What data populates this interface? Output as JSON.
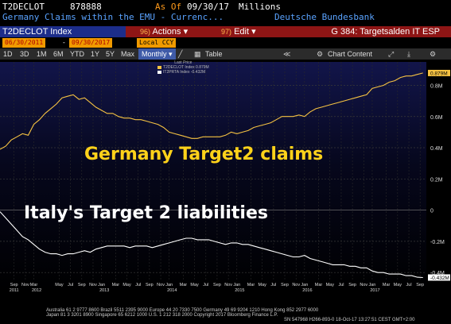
{
  "header": {
    "ticker": "T2DECLOT",
    "code": "878888",
    "as_of_label": "As Of",
    "as_of_date": "09/30/17",
    "units": "Millions",
    "description": "Germany Claims within the EMU - Currenc...",
    "source": "Deutsche Bundesbank"
  },
  "toolbar": {
    "index_name": "T2DECLOT Index",
    "actions_num": "96)",
    "actions_label": "Actions ▾",
    "edit_num": "97)",
    "edit_label": "Edit ▾",
    "page_title": "G 384: Targetsalden IT ESP"
  },
  "date_row": {
    "start_date": "06/30/2011",
    "end_date": "09/30/2017",
    "dash": "-",
    "currency": "Local CCY"
  },
  "periods": [
    "1D",
    "3D",
    "1M",
    "6M",
    "YTD",
    "1Y",
    "5Y",
    "Max"
  ],
  "period_selector": "Monthly ▾",
  "table_label": "Table",
  "chart_content_label": "Chart Content",
  "legend": {
    "title": "Last Price",
    "series1": "T2DECLOT Index   0.879M",
    "series2": "IT2PRTA Index   -0.432M",
    "series1_color": "#f5c242",
    "series2_color": "#ffffff"
  },
  "annotations": {
    "germany": "Germany Target2 claims",
    "italy": "Italy's Target 2 liabilities"
  },
  "footer": {
    "line1": "Australia 61 2 9777 8600 Brazil 5511 2395 9000 Europe 44 20 7330 7500 Germany 49 69 9204 1210 Hong Kong 852 2977 6000",
    "line2": "Japan 81 3 3201 8900        Singapore 65 6212 1000        U.S. 1 212 318 2000              Copyright 2017 Bloomberg Finance L.P.",
    "line3": "SN 547968 H266-893-0 18-Oct-17 13:27:51 CEST GMT+2:00"
  },
  "chart_data": {
    "type": "line",
    "ylim": [
      -0.45,
      0.95
    ],
    "y_ticks": [
      0.8,
      0.6,
      0.4,
      0.2,
      0,
      -0.2,
      -0.4
    ],
    "y_tick_labels": [
      "0.8M",
      "0.6M",
      "0.4M",
      "0.2M",
      "0",
      "-0.2M",
      "-0.4M"
    ],
    "month_ticks": [
      {
        "t": 2011.708,
        "label": "Sep"
      },
      {
        "t": 2011.875,
        "label": "Nov"
      },
      {
        "t": 2012.0,
        "label": "Mar"
      },
      {
        "t": 2012.375,
        "label": "May"
      },
      {
        "t": 2012.542,
        "label": "Jul"
      },
      {
        "t": 2012.708,
        "label": "Sep"
      },
      {
        "t": 2012.875,
        "label": "Nov"
      },
      {
        "t": 2013.0,
        "label": "Jan"
      },
      {
        "t": 2013.208,
        "label": "Mar"
      },
      {
        "t": 2013.375,
        "label": "May"
      },
      {
        "t": 2013.542,
        "label": "Jul"
      },
      {
        "t": 2013.708,
        "label": "Sep"
      },
      {
        "t": 2013.875,
        "label": "Nov"
      },
      {
        "t": 2014.0,
        "label": "Jan"
      },
      {
        "t": 2014.208,
        "label": "Mar"
      },
      {
        "t": 2014.375,
        "label": "May"
      },
      {
        "t": 2014.542,
        "label": "Jul"
      },
      {
        "t": 2014.708,
        "label": "Sep"
      },
      {
        "t": 2014.875,
        "label": "Nov"
      },
      {
        "t": 2015.0,
        "label": "Jan"
      },
      {
        "t": 2015.208,
        "label": "Mar"
      },
      {
        "t": 2015.375,
        "label": "May"
      },
      {
        "t": 2015.542,
        "label": "Jul"
      },
      {
        "t": 2015.708,
        "label": "Sep"
      },
      {
        "t": 2015.875,
        "label": "Nov"
      },
      {
        "t": 2016.0,
        "label": "Jan"
      },
      {
        "t": 2016.208,
        "label": "Mar"
      },
      {
        "t": 2016.375,
        "label": "May"
      },
      {
        "t": 2016.542,
        "label": "Jul"
      },
      {
        "t": 2016.708,
        "label": "Sep"
      },
      {
        "t": 2016.875,
        "label": "Nov"
      },
      {
        "t": 2017.0,
        "label": "Jan"
      },
      {
        "t": 2017.208,
        "label": "Mar"
      },
      {
        "t": 2017.375,
        "label": "May"
      },
      {
        "t": 2017.542,
        "label": "Jul"
      },
      {
        "t": 2017.708,
        "label": "Sep"
      }
    ],
    "year_ticks": [
      {
        "t": 2011.708,
        "label": "2011"
      },
      {
        "t": 2012.042,
        "label": "2012"
      },
      {
        "t": 2013.042,
        "label": "2013"
      },
      {
        "t": 2014.042,
        "label": "2014"
      },
      {
        "t": 2015.042,
        "label": "2015"
      },
      {
        "t": 2016.042,
        "label": "2016"
      },
      {
        "t": 2017.042,
        "label": "2017"
      }
    ],
    "series": [
      {
        "name": "T2DECLOT Index",
        "color": "#f5c242",
        "last_value_label": "0.879M",
        "points": [
          [
            2011.5,
            0.39
          ],
          [
            2011.583,
            0.41
          ],
          [
            2011.667,
            0.45
          ],
          [
            2011.75,
            0.47
          ],
          [
            2011.833,
            0.49
          ],
          [
            2011.917,
            0.48
          ],
          [
            2012.0,
            0.55
          ],
          [
            2012.083,
            0.58
          ],
          [
            2012.167,
            0.62
          ],
          [
            2012.25,
            0.65
          ],
          [
            2012.333,
            0.68
          ],
          [
            2012.417,
            0.72
          ],
          [
            2012.5,
            0.73
          ],
          [
            2012.583,
            0.74
          ],
          [
            2012.667,
            0.71
          ],
          [
            2012.75,
            0.72
          ],
          [
            2012.833,
            0.69
          ],
          [
            2012.917,
            0.66
          ],
          [
            2013.0,
            0.64
          ],
          [
            2013.083,
            0.62
          ],
          [
            2013.167,
            0.62
          ],
          [
            2013.25,
            0.6
          ],
          [
            2013.333,
            0.59
          ],
          [
            2013.417,
            0.59
          ],
          [
            2013.5,
            0.58
          ],
          [
            2013.583,
            0.58
          ],
          [
            2013.667,
            0.57
          ],
          [
            2013.75,
            0.56
          ],
          [
            2013.833,
            0.55
          ],
          [
            2013.917,
            0.53
          ],
          [
            2014.0,
            0.5
          ],
          [
            2014.083,
            0.49
          ],
          [
            2014.167,
            0.48
          ],
          [
            2014.25,
            0.47
          ],
          [
            2014.333,
            0.46
          ],
          [
            2014.417,
            0.46
          ],
          [
            2014.5,
            0.47
          ],
          [
            2014.583,
            0.47
          ],
          [
            2014.667,
            0.47
          ],
          [
            2014.75,
            0.47
          ],
          [
            2014.833,
            0.48
          ],
          [
            2014.917,
            0.5
          ],
          [
            2015.0,
            0.49
          ],
          [
            2015.083,
            0.5
          ],
          [
            2015.167,
            0.51
          ],
          [
            2015.25,
            0.53
          ],
          [
            2015.333,
            0.54
          ],
          [
            2015.417,
            0.55
          ],
          [
            2015.5,
            0.56
          ],
          [
            2015.583,
            0.58
          ],
          [
            2015.667,
            0.6
          ],
          [
            2015.75,
            0.6
          ],
          [
            2015.833,
            0.6
          ],
          [
            2015.917,
            0.61
          ],
          [
            2016.0,
            0.6
          ],
          [
            2016.083,
            0.63
          ],
          [
            2016.167,
            0.65
          ],
          [
            2016.25,
            0.66
          ],
          [
            2016.333,
            0.67
          ],
          [
            2016.417,
            0.68
          ],
          [
            2016.5,
            0.69
          ],
          [
            2016.583,
            0.7
          ],
          [
            2016.667,
            0.71
          ],
          [
            2016.75,
            0.72
          ],
          [
            2016.833,
            0.73
          ],
          [
            2016.917,
            0.74
          ],
          [
            2017.0,
            0.78
          ],
          [
            2017.083,
            0.79
          ],
          [
            2017.167,
            0.8
          ],
          [
            2017.25,
            0.82
          ],
          [
            2017.333,
            0.83
          ],
          [
            2017.417,
            0.85
          ],
          [
            2017.5,
            0.86
          ],
          [
            2017.583,
            0.86
          ],
          [
            2017.667,
            0.87
          ],
          [
            2017.75,
            0.879
          ]
        ]
      },
      {
        "name": "IT2PRTA Index",
        "color": "#ffffff",
        "last_value_label": "-0.432M",
        "points": [
          [
            2011.5,
            -0.01
          ],
          [
            2011.583,
            -0.05
          ],
          [
            2011.667,
            -0.09
          ],
          [
            2011.75,
            -0.13
          ],
          [
            2011.833,
            -0.17
          ],
          [
            2011.917,
            -0.19
          ],
          [
            2012.0,
            -0.22
          ],
          [
            2012.083,
            -0.25
          ],
          [
            2012.167,
            -0.27
          ],
          [
            2012.25,
            -0.28
          ],
          [
            2012.333,
            -0.28
          ],
          [
            2012.417,
            -0.29
          ],
          [
            2012.5,
            -0.28
          ],
          [
            2012.583,
            -0.28
          ],
          [
            2012.667,
            -0.27
          ],
          [
            2012.75,
            -0.26
          ],
          [
            2012.833,
            -0.27
          ],
          [
            2012.917,
            -0.25
          ],
          [
            2013.0,
            -0.24
          ],
          [
            2013.083,
            -0.23
          ],
          [
            2013.167,
            -0.23
          ],
          [
            2013.25,
            -0.23
          ],
          [
            2013.333,
            -0.23
          ],
          [
            2013.417,
            -0.24
          ],
          [
            2013.5,
            -0.23
          ],
          [
            2013.583,
            -0.23
          ],
          [
            2013.667,
            -0.23
          ],
          [
            2013.75,
            -0.24
          ],
          [
            2013.833,
            -0.23
          ],
          [
            2013.917,
            -0.22
          ],
          [
            2014.0,
            -0.21
          ],
          [
            2014.083,
            -0.2
          ],
          [
            2014.167,
            -0.19
          ],
          [
            2014.25,
            -0.18
          ],
          [
            2014.333,
            -0.18
          ],
          [
            2014.417,
            -0.19
          ],
          [
            2014.5,
            -0.19
          ],
          [
            2014.583,
            -0.19
          ],
          [
            2014.667,
            -0.2
          ],
          [
            2014.75,
            -0.21
          ],
          [
            2014.833,
            -0.22
          ],
          [
            2014.917,
            -0.21
          ],
          [
            2015.0,
            -0.21
          ],
          [
            2015.083,
            -0.22
          ],
          [
            2015.167,
            -0.22
          ],
          [
            2015.25,
            -0.23
          ],
          [
            2015.333,
            -0.24
          ],
          [
            2015.417,
            -0.25
          ],
          [
            2015.5,
            -0.26
          ],
          [
            2015.583,
            -0.27
          ],
          [
            2015.667,
            -0.28
          ],
          [
            2015.75,
            -0.29
          ],
          [
            2015.833,
            -0.3
          ],
          [
            2015.917,
            -0.3
          ],
          [
            2016.0,
            -0.29
          ],
          [
            2016.083,
            -0.31
          ],
          [
            2016.167,
            -0.32
          ],
          [
            2016.25,
            -0.33
          ],
          [
            2016.333,
            -0.34
          ],
          [
            2016.417,
            -0.35
          ],
          [
            2016.5,
            -0.35
          ],
          [
            2016.583,
            -0.35
          ],
          [
            2016.667,
            -0.36
          ],
          [
            2016.75,
            -0.36
          ],
          [
            2016.833,
            -0.37
          ],
          [
            2016.917,
            -0.37
          ],
          [
            2017.0,
            -0.39
          ],
          [
            2017.083,
            -0.4
          ],
          [
            2017.167,
            -0.4
          ],
          [
            2017.25,
            -0.41
          ],
          [
            2017.333,
            -0.41
          ],
          [
            2017.417,
            -0.41
          ],
          [
            2017.5,
            -0.42
          ],
          [
            2017.583,
            -0.42
          ],
          [
            2017.667,
            -0.43
          ],
          [
            2017.75,
            -0.432
          ]
        ]
      }
    ]
  }
}
